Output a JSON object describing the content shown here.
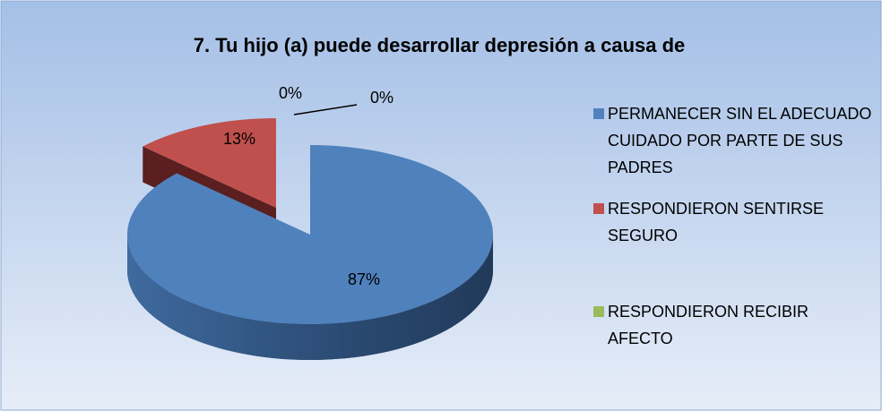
{
  "chart_data": {
    "type": "pie3d",
    "title": "7. Tu hijo (a) puede desarrollar depresión a causa de",
    "categories": [
      "PERMANECER SIN EL ADECUADO CUIDADO POR PARTE DE SUS PADRES",
      "RESPONDIERON SENTIRSE SEGURO",
      "RESPONDIERON RECIBIR AFECTO",
      null
    ],
    "values": [
      87,
      13,
      0,
      0
    ],
    "value_labels": [
      "87%",
      "13%",
      "0%",
      "0%"
    ],
    "colors": [
      "#4f81bd",
      "#c0504d",
      "#9bbb59",
      "#8064a2"
    ],
    "legend": "right"
  }
}
